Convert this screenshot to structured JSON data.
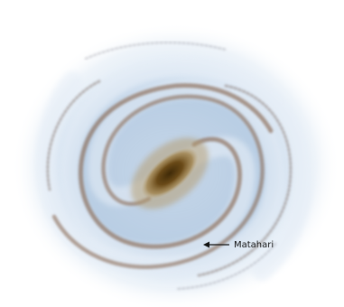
{
  "image": {
    "subject": "spiral-galaxy-illustration",
    "annotation": {
      "text": "Matahari",
      "icon": "arrow-left-icon"
    },
    "colors": {
      "background": "#ffffff",
      "halo": "#dfe9f4",
      "disk": "#b9cfe6",
      "arm_dust": "#8a6a55",
      "bulge_core": "#5a3c10",
      "bulge_outer": "#a07a3a",
      "text": "#111111"
    }
  }
}
